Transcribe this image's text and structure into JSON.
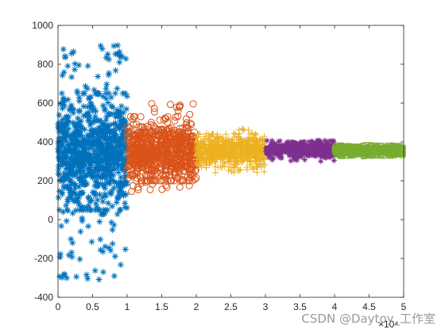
{
  "chart_data": {
    "type": "scatter",
    "title": "",
    "xlabel": "",
    "ylabel": "",
    "xlim": [
      0,
      50000
    ],
    "ylim": [
      -400,
      1000
    ],
    "x_exponent_label": "×10⁴",
    "xticks": [
      0,
      5000,
      10000,
      15000,
      20000,
      25000,
      30000,
      35000,
      40000,
      45000,
      50000
    ],
    "xtick_labels": [
      "0",
      "0.5",
      "1",
      "1.5",
      "2",
      "2.5",
      "3",
      "3.5",
      "4",
      "4.5",
      "5"
    ],
    "yticks": [
      -400,
      -200,
      0,
      200,
      400,
      600,
      800,
      1000
    ],
    "ytick_labels": [
      "-400",
      "-200",
      "0",
      "200",
      "400",
      "600",
      "800",
      "1000"
    ],
    "grid": false,
    "legend": "none",
    "series": [
      {
        "marker": "asterisk",
        "color": "#0072BD",
        "x_range": [
          0,
          10000
        ],
        "center": 350,
        "typical_min": 50,
        "typical_max": 650,
        "extreme_min": -330,
        "extreme_max": 900
      },
      {
        "marker": "circle",
        "color": "#D95319",
        "x_range": [
          10000,
          20000
        ],
        "center": 350,
        "typical_min": 200,
        "typical_max": 530,
        "extreme_min": 140,
        "extreme_max": 600
      },
      {
        "marker": "plus",
        "color": "#EDB120",
        "x_range": [
          20000,
          30000
        ],
        "center": 355,
        "typical_min": 270,
        "typical_max": 440,
        "extreme_min": 240,
        "extreme_max": 470
      },
      {
        "marker": "star",
        "color": "#7E2F8E",
        "x_range": [
          30000,
          40000
        ],
        "center": 360,
        "typical_min": 320,
        "typical_max": 400,
        "extreme_min": 300,
        "extreme_max": 410
      },
      {
        "marker": "square",
        "color": "#77AC30",
        "x_range": [
          40000,
          50000
        ],
        "center": 355,
        "typical_min": 330,
        "typical_max": 380,
        "extreme_min": 325,
        "extreme_max": 385
      }
    ]
  },
  "watermark": "CSDN @Daytoy_工作室"
}
